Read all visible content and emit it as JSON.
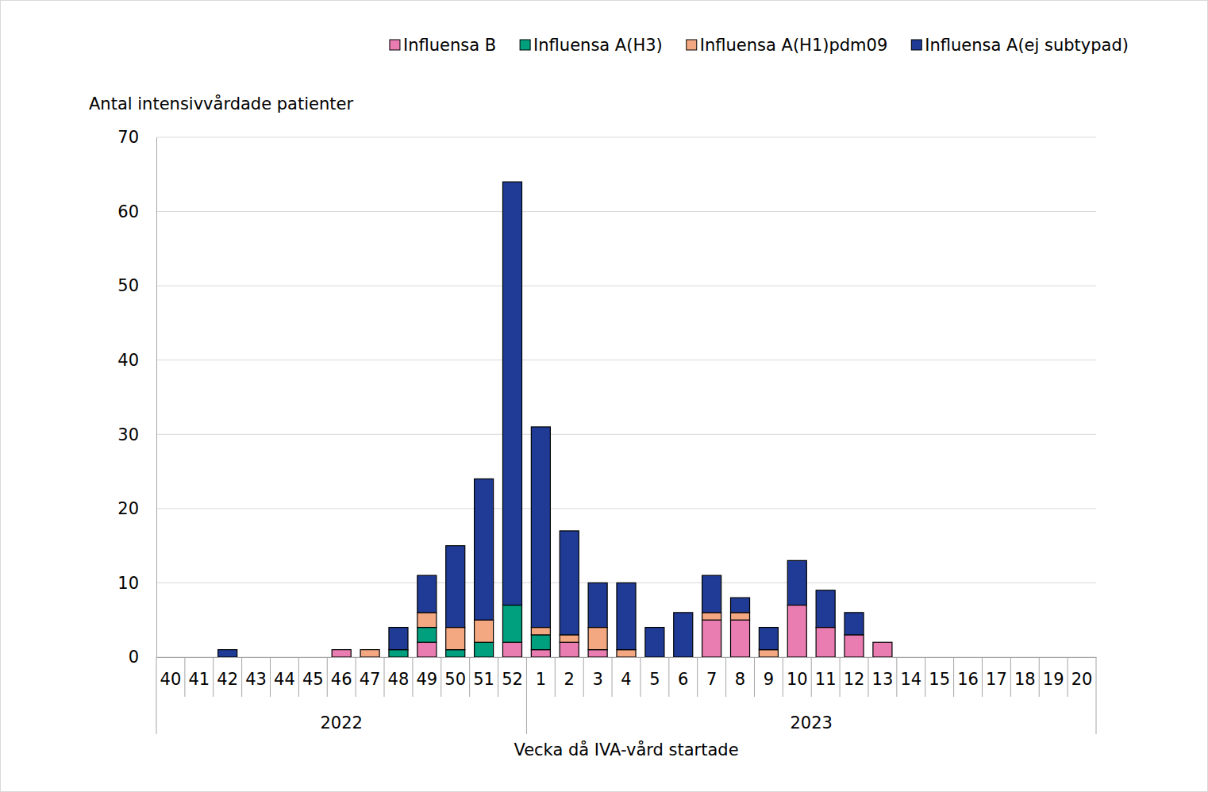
{
  "chart_data": {
    "type": "bar",
    "stacked": true,
    "grid": true,
    "legend": "top",
    "y_label": "Antal intensivvårdade patienter",
    "x_label": "Vecka då IVA-vård startade",
    "categories": [
      "40",
      "41",
      "42",
      "43",
      "44",
      "45",
      "46",
      "47",
      "48",
      "49",
      "50",
      "51",
      "52",
      "1",
      "2",
      "3",
      "4",
      "5",
      "6",
      "7",
      "8",
      "9",
      "10",
      "11",
      "12",
      "13",
      "14",
      "15",
      "16",
      "17",
      "18",
      "19",
      "20"
    ],
    "category_groups": [
      {
        "label": "2022",
        "span": 13
      },
      {
        "label": "2023",
        "span": 20
      }
    ],
    "ylim": [
      0,
      70
    ],
    "yticks": [
      0,
      10,
      20,
      30,
      40,
      50,
      60,
      70
    ],
    "series": [
      {
        "name": "Influensa B",
        "color": "#e97db2",
        "values": [
          0,
          0,
          0,
          0,
          0,
          0,
          1,
          0,
          0,
          2,
          0,
          0,
          2,
          1,
          2,
          1,
          0,
          0,
          0,
          5,
          5,
          0,
          7,
          4,
          3,
          2,
          0,
          0,
          0,
          0,
          0,
          0,
          0
        ]
      },
      {
        "name": "Influensa A(H3)",
        "color": "#00a07e",
        "values": [
          0,
          0,
          0,
          0,
          0,
          0,
          0,
          0,
          1,
          2,
          1,
          2,
          5,
          2,
          0,
          0,
          0,
          0,
          0,
          0,
          0,
          0,
          0,
          0,
          0,
          0,
          0,
          0,
          0,
          0,
          0,
          0,
          0
        ]
      },
      {
        "name": "Influensa A(H1)pdm09",
        "color": "#f3a882",
        "values": [
          0,
          0,
          0,
          0,
          0,
          0,
          0,
          1,
          0,
          2,
          3,
          3,
          0,
          1,
          1,
          3,
          1,
          0,
          0,
          1,
          1,
          1,
          0,
          0,
          0,
          0,
          0,
          0,
          0,
          0,
          0,
          0,
          0
        ]
      },
      {
        "name": "Influensa A(ej subtypad)",
        "color": "#1f3b95",
        "values": [
          0,
          0,
          1,
          0,
          0,
          0,
          0,
          0,
          3,
          5,
          11,
          19,
          57,
          27,
          14,
          6,
          9,
          4,
          6,
          5,
          2,
          3,
          6,
          5,
          3,
          0,
          0,
          0,
          0,
          0,
          0,
          0,
          0
        ]
      }
    ]
  }
}
